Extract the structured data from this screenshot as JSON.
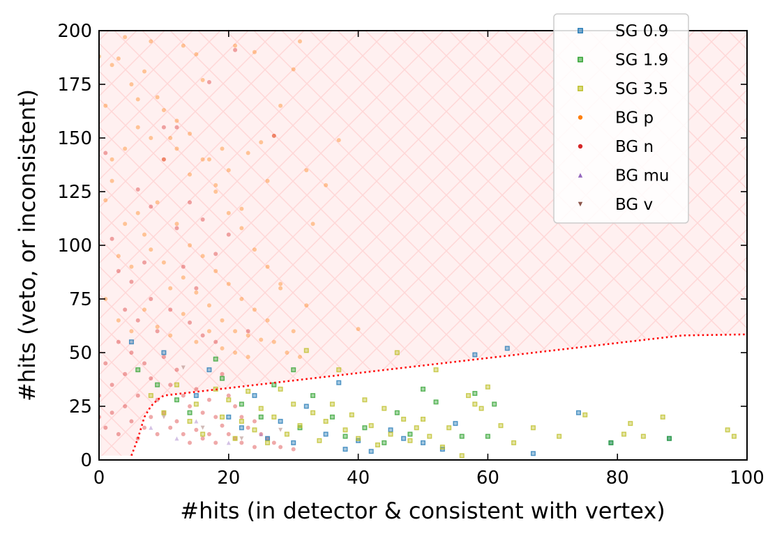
{
  "chart_data": {
    "type": "scatter",
    "xlabel": "#hits (in detector & consistent with vertex)",
    "ylabel": "#hits (veto, or inconsistent)",
    "xlim": [
      0,
      100
    ],
    "ylim": [
      0,
      200
    ],
    "x_ticks": [
      "0",
      "20",
      "40",
      "60",
      "80",
      "100"
    ],
    "y_ticks": [
      "0",
      "25",
      "50",
      "75",
      "100",
      "125",
      "150",
      "175",
      "200"
    ],
    "legend_position": "top-right",
    "grid": false,
    "rejected_region": {
      "fill": "#fff0f0",
      "hatch": "x",
      "hatch_color": "#ffd7d7"
    },
    "cut_line": {
      "style": "dotted",
      "color": "#ff0000",
      "points": [
        [
          5,
          2
        ],
        [
          6,
          10
        ],
        [
          7,
          20
        ],
        [
          8,
          25
        ],
        [
          9,
          28
        ],
        [
          10,
          30
        ],
        [
          20,
          33.5
        ],
        [
          30,
          37
        ],
        [
          40,
          40.5
        ],
        [
          50,
          44
        ],
        [
          60,
          47.5
        ],
        [
          70,
          51
        ],
        [
          80,
          54.5
        ],
        [
          90,
          58
        ],
        [
          100,
          58.5
        ]
      ]
    },
    "series": [
      {
        "name": "SG 0.9",
        "color": "#1f77b4",
        "marker": "square",
        "points": [
          [
            5,
            55
          ],
          [
            10,
            50
          ],
          [
            15,
            30
          ],
          [
            17,
            42
          ],
          [
            20,
            20
          ],
          [
            22,
            15
          ],
          [
            24,
            30
          ],
          [
            26,
            10
          ],
          [
            28,
            18
          ],
          [
            30,
            8
          ],
          [
            32,
            25
          ],
          [
            35,
            12
          ],
          [
            37,
            36
          ],
          [
            38,
            5
          ],
          [
            40,
            9
          ],
          [
            42,
            4
          ],
          [
            45,
            14
          ],
          [
            47,
            10
          ],
          [
            50,
            8
          ],
          [
            53,
            5
          ],
          [
            55,
            17
          ],
          [
            58,
            49
          ],
          [
            63,
            52
          ],
          [
            67,
            3
          ],
          [
            74,
            22
          ],
          [
            79,
            8
          ],
          [
            88,
            10
          ]
        ]
      },
      {
        "name": "SG 1.9",
        "color": "#2ca02c",
        "marker": "square",
        "points": [
          [
            6,
            42
          ],
          [
            9,
            35
          ],
          [
            12,
            28
          ],
          [
            14,
            22
          ],
          [
            18,
            47
          ],
          [
            19,
            38
          ],
          [
            22,
            26
          ],
          [
            25,
            20
          ],
          [
            27,
            35
          ],
          [
            30,
            42
          ],
          [
            31,
            15
          ],
          [
            33,
            30
          ],
          [
            36,
            20
          ],
          [
            38,
            11
          ],
          [
            41,
            15
          ],
          [
            44,
            8
          ],
          [
            46,
            22
          ],
          [
            48,
            12
          ],
          [
            50,
            33
          ],
          [
            52,
            27
          ],
          [
            56,
            11
          ],
          [
            58,
            31
          ],
          [
            60,
            11
          ],
          [
            61,
            26
          ],
          [
            79,
            8
          ],
          [
            88,
            10
          ]
        ]
      },
      {
        "name": "SG 3.5",
        "color": "#bcbd22",
        "marker": "square",
        "points": [
          [
            8,
            30
          ],
          [
            10,
            22
          ],
          [
            12,
            35
          ],
          [
            14,
            18
          ],
          [
            15,
            26
          ],
          [
            16,
            12
          ],
          [
            18,
            33
          ],
          [
            19,
            20
          ],
          [
            20,
            28
          ],
          [
            21,
            10
          ],
          [
            22,
            18
          ],
          [
            23,
            32
          ],
          [
            24,
            14
          ],
          [
            25,
            24
          ],
          [
            26,
            8
          ],
          [
            27,
            20
          ],
          [
            28,
            33
          ],
          [
            29,
            12
          ],
          [
            30,
            26
          ],
          [
            31,
            16
          ],
          [
            32,
            51
          ],
          [
            33,
            22
          ],
          [
            34,
            9
          ],
          [
            35,
            18
          ],
          [
            36,
            26
          ],
          [
            37,
            42
          ],
          [
            38,
            14
          ],
          [
            39,
            21
          ],
          [
            40,
            10
          ],
          [
            41,
            28
          ],
          [
            42,
            16
          ],
          [
            43,
            7
          ],
          [
            44,
            24
          ],
          [
            45,
            12
          ],
          [
            46,
            50
          ],
          [
            47,
            19
          ],
          [
            48,
            9
          ],
          [
            49,
            15
          ],
          [
            50,
            19
          ],
          [
            51,
            11
          ],
          [
            52,
            42
          ],
          [
            53,
            6
          ],
          [
            54,
            15
          ],
          [
            56,
            2
          ],
          [
            57,
            30
          ],
          [
            58,
            26
          ],
          [
            59,
            24
          ],
          [
            60,
            34
          ],
          [
            62,
            16
          ],
          [
            64,
            8
          ],
          [
            67,
            15
          ],
          [
            71,
            11
          ],
          [
            75,
            21
          ],
          [
            81,
            12
          ],
          [
            82,
            17
          ],
          [
            84,
            11
          ],
          [
            87,
            20
          ],
          [
            97,
            14
          ],
          [
            98,
            11
          ]
        ]
      },
      {
        "name": "BG p",
        "color": "#ff7f0e",
        "marker": "circle",
        "points": [
          [
            0,
            188
          ],
          [
            1,
            165
          ],
          [
            2,
            184
          ],
          [
            3,
            187
          ],
          [
            4,
            197
          ],
          [
            5,
            175
          ],
          [
            6,
            168
          ],
          [
            7,
            181
          ],
          [
            8,
            195
          ],
          [
            9,
            169
          ],
          [
            10,
            163
          ],
          [
            11,
            150
          ],
          [
            12,
            145
          ],
          [
            13,
            193
          ],
          [
            14,
            133
          ],
          [
            15,
            189
          ],
          [
            16,
            177
          ],
          [
            17,
            140
          ],
          [
            18,
            125
          ],
          [
            19,
            145
          ],
          [
            20,
            135
          ],
          [
            21,
            193
          ],
          [
            22,
            117
          ],
          [
            23,
            143
          ],
          [
            24,
            190
          ],
          [
            25,
            148
          ],
          [
            26,
            130
          ],
          [
            27,
            151
          ],
          [
            28,
            165
          ],
          [
            30,
            182
          ],
          [
            31,
            195
          ],
          [
            32,
            135
          ],
          [
            33,
            110
          ],
          [
            35,
            128
          ],
          [
            37,
            149
          ],
          [
            40,
            61
          ],
          [
            1,
            121
          ],
          [
            2,
            140
          ],
          [
            3,
            95
          ],
          [
            4,
            110
          ],
          [
            5,
            90
          ],
          [
            6,
            115
          ],
          [
            7,
            105
          ],
          [
            8,
            98
          ],
          [
            9,
            120
          ],
          [
            10,
            92
          ],
          [
            11,
            80
          ],
          [
            12,
            110
          ],
          [
            13,
            85
          ],
          [
            14,
            100
          ],
          [
            15,
            78
          ],
          [
            16,
            95
          ],
          [
            17,
            72
          ],
          [
            18,
            88
          ],
          [
            19,
            65
          ],
          [
            20,
            82
          ],
          [
            21,
            60
          ],
          [
            22,
            75
          ],
          [
            23,
            58
          ],
          [
            24,
            70
          ],
          [
            25,
            56
          ],
          [
            26,
            65
          ],
          [
            27,
            55
          ],
          [
            28,
            80
          ],
          [
            29,
            50
          ],
          [
            30,
            60
          ],
          [
            31,
            48
          ],
          [
            32,
            72
          ],
          [
            28,
            82
          ],
          [
            26,
            90
          ],
          [
            24,
            98
          ],
          [
            22,
            108
          ],
          [
            20,
            115
          ],
          [
            18,
            128
          ],
          [
            16,
            140
          ],
          [
            14,
            152
          ],
          [
            12,
            158
          ],
          [
            10,
            140
          ],
          [
            8,
            150
          ],
          [
            6,
            155
          ],
          [
            4,
            145
          ],
          [
            2,
            130
          ],
          [
            1,
            75
          ],
          [
            3,
            65
          ],
          [
            5,
            60
          ],
          [
            7,
            70
          ],
          [
            9,
            62
          ],
          [
            11,
            58
          ],
          [
            13,
            68
          ],
          [
            15,
            55
          ],
          [
            17,
            60
          ],
          [
            19,
            52
          ],
          [
            21,
            50
          ],
          [
            23,
            48
          ]
        ]
      },
      {
        "name": "BG n",
        "color": "#d62728",
        "marker": "circle",
        "points": [
          [
            0,
            30
          ],
          [
            0,
            20
          ],
          [
            1,
            143
          ],
          [
            1,
            45
          ],
          [
            1,
            15
          ],
          [
            2,
            103
          ],
          [
            2,
            35
          ],
          [
            2,
            22
          ],
          [
            3,
            88
          ],
          [
            3,
            55
          ],
          [
            3,
            12
          ],
          [
            4,
            70
          ],
          [
            4,
            40
          ],
          [
            4,
            25
          ],
          [
            5,
            83
          ],
          [
            5,
            50
          ],
          [
            5,
            18
          ],
          [
            6,
            65
          ],
          [
            6,
            30
          ],
          [
            6,
            10
          ],
          [
            7,
            92
          ],
          [
            7,
            45
          ],
          [
            7,
            15
          ],
          [
            8,
            75
          ],
          [
            8,
            38
          ],
          [
            8,
            20
          ],
          [
            9,
            60
          ],
          [
            9,
            28
          ],
          [
            9,
            12
          ],
          [
            10,
            155
          ],
          [
            10,
            48
          ],
          [
            10,
            22
          ],
          [
            11,
            70
          ],
          [
            11,
            35
          ],
          [
            11,
            15
          ],
          [
            12,
            155
          ],
          [
            12,
            42
          ],
          [
            12,
            18
          ],
          [
            13,
            90
          ],
          [
            13,
            30
          ],
          [
            13,
            12
          ],
          [
            14,
            64
          ],
          [
            14,
            25
          ],
          [
            14,
            8
          ],
          [
            15,
            80
          ],
          [
            15,
            33
          ],
          [
            15,
            14
          ],
          [
            16,
            58
          ],
          [
            16,
            22
          ],
          [
            16,
            10
          ],
          [
            17,
            176
          ],
          [
            17,
            28
          ],
          [
            17,
            12
          ],
          [
            18,
            55
          ],
          [
            18,
            20
          ],
          [
            18,
            8
          ],
          [
            19,
            40
          ],
          [
            19,
            16
          ],
          [
            20,
            30
          ],
          [
            20,
            12
          ],
          [
            21,
            191
          ],
          [
            21,
            25
          ],
          [
            21,
            10
          ],
          [
            22,
            20
          ],
          [
            22,
            8
          ],
          [
            23,
            60
          ],
          [
            23,
            15
          ],
          [
            24,
            18
          ],
          [
            24,
            6
          ],
          [
            25,
            12
          ],
          [
            26,
            10
          ],
          [
            27,
            151
          ],
          [
            27,
            8
          ],
          [
            28,
            6
          ],
          [
            30,
            5
          ],
          [
            6,
            126
          ],
          [
            8,
            118
          ],
          [
            10,
            140
          ],
          [
            12,
            108
          ],
          [
            14,
            120
          ],
          [
            16,
            112
          ],
          [
            18,
            96
          ],
          [
            20,
            105
          ]
        ]
      },
      {
        "name": "BG mu",
        "color": "#9467bd",
        "marker": "triangle-up",
        "points": [
          [
            8,
            15
          ],
          [
            12,
            10
          ],
          [
            15,
            18
          ],
          [
            20,
            8
          ],
          [
            25,
            12
          ]
        ]
      },
      {
        "name": "BG v",
        "color": "#8c564b",
        "marker": "triangle-down",
        "points": [
          [
            10,
            20
          ],
          [
            13,
            43
          ],
          [
            16,
            15
          ],
          [
            22,
            10
          ],
          [
            28,
            14
          ]
        ]
      }
    ]
  }
}
